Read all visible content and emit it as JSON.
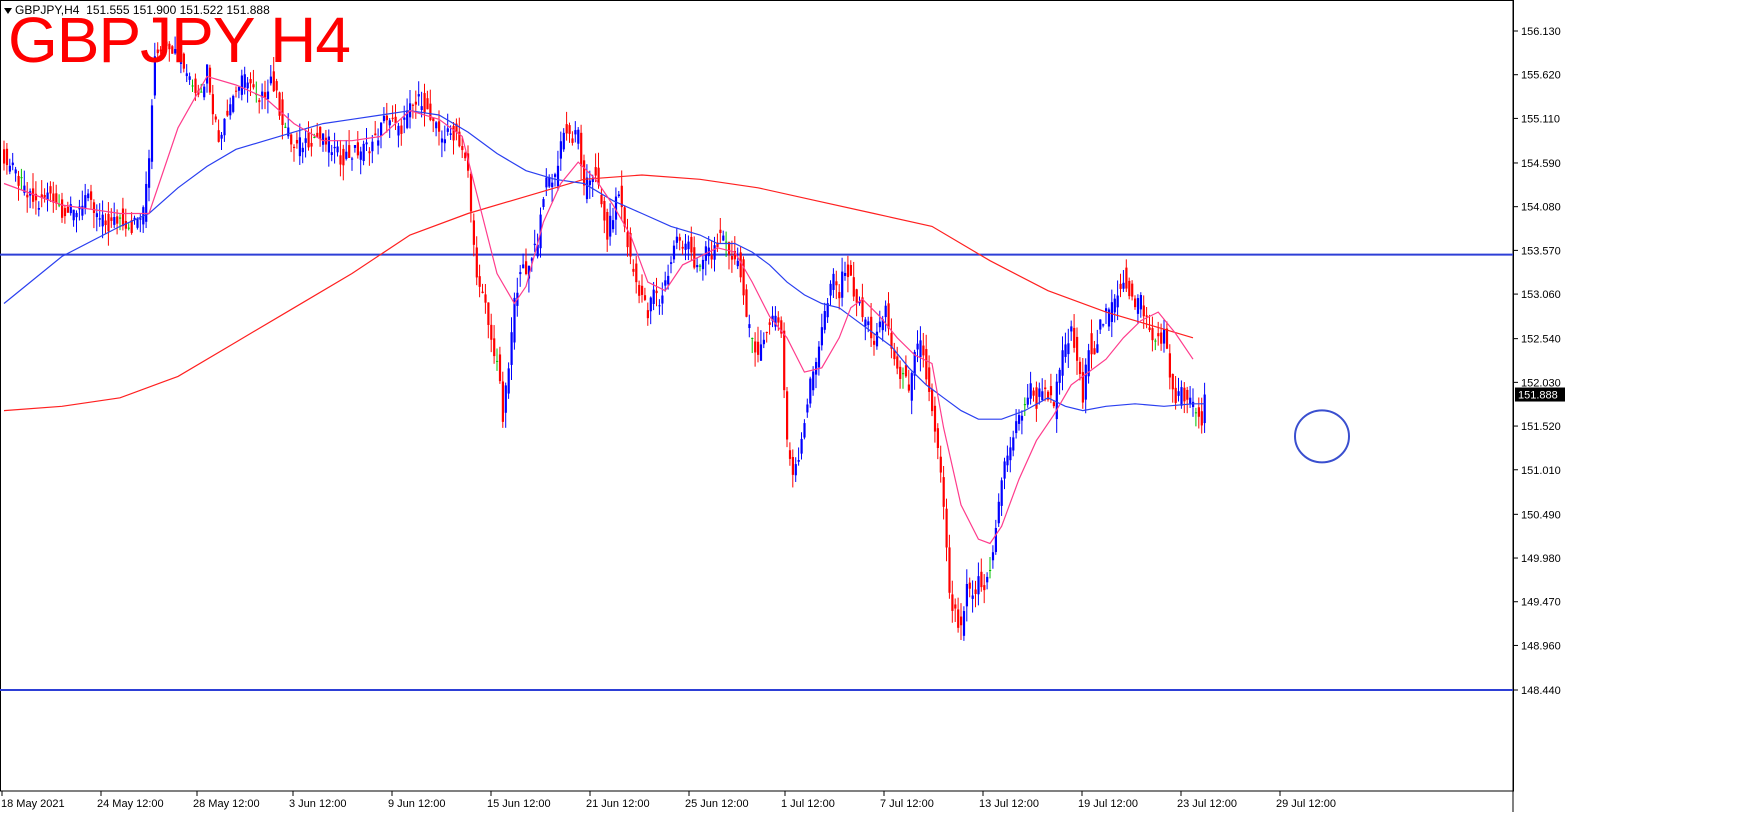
{
  "header": {
    "symbol": "GBPJPY,H4",
    "open": "151.555",
    "high": "151.900",
    "low": "151.522",
    "close": "151.888"
  },
  "overlay_title": "GBPJPY H4",
  "current_price_label": "151.888",
  "colors": {
    "bull_candle": "#0000ff",
    "bear_candle": "#ff0000",
    "doji_candle": "#00c000",
    "ma_fast": "#ff3c8c",
    "ma_mid": "#2a3ff0",
    "ma_slow": "#ff2020",
    "horizontal_lines": "#2d3fd6",
    "marker_circle": "#3a4fcf",
    "price_label_bg": "#000000"
  },
  "chart_data": {
    "type": "candlestick",
    "title": "GBPJPY H4",
    "ylim": [
      148.3,
      156.35
    ],
    "y_ticks": [
      "156.130",
      "155.620",
      "155.110",
      "154.590",
      "154.080",
      "153.570",
      "153.060",
      "152.540",
      "152.030",
      "151.520",
      "151.010",
      "150.490",
      "149.980",
      "149.470",
      "148.960",
      "148.440"
    ],
    "x_ticks": [
      "18 May 2021",
      "24 May 12:00",
      "28 May 12:00",
      "3 Jun 12:00",
      "9 Jun 12:00",
      "15 Jun 12:00",
      "21 Jun 12:00",
      "25 Jun 12:00",
      "1 Jul 12:00",
      "7 Jul 12:00",
      "13 Jul 12:00",
      "19 Jul 12:00",
      "23 Jul 12:00",
      "29 Jul 12:00"
    ],
    "horizontal_levels": [
      153.52,
      148.44
    ],
    "close_anchors": [
      [
        0,
        154.65
      ],
      [
        4,
        154.45
      ],
      [
        8,
        154.2
      ],
      [
        12,
        154.1
      ],
      [
        16,
        154.25
      ],
      [
        20,
        154.05
      ],
      [
        24,
        154.0
      ],
      [
        28,
        154.2
      ],
      [
        32,
        153.95
      ],
      [
        36,
        153.85
      ],
      [
        40,
        153.95
      ],
      [
        44,
        153.85
      ],
      [
        48,
        154.0
      ],
      [
        50,
        154.7
      ],
      [
        52,
        155.9
      ],
      [
        56,
        156.05
      ],
      [
        60,
        155.85
      ],
      [
        64,
        155.6
      ],
      [
        68,
        155.4
      ],
      [
        70,
        155.7
      ],
      [
        72,
        155.25
      ],
      [
        74,
        154.85
      ],
      [
        76,
        155.15
      ],
      [
        80,
        155.45
      ],
      [
        84,
        155.6
      ],
      [
        88,
        155.25
      ],
      [
        92,
        155.6
      ],
      [
        96,
        155.1
      ],
      [
        100,
        154.75
      ],
      [
        104,
        154.85
      ],
      [
        108,
        154.9
      ],
      [
        112,
        154.8
      ],
      [
        116,
        154.65
      ],
      [
        120,
        154.7
      ],
      [
        124,
        154.75
      ],
      [
        128,
        154.85
      ],
      [
        132,
        155.15
      ],
      [
        136,
        154.95
      ],
      [
        140,
        155.2
      ],
      [
        144,
        155.35
      ],
      [
        148,
        155.0
      ],
      [
        152,
        154.9
      ],
      [
        156,
        154.95
      ],
      [
        158,
        154.75
      ],
      [
        160,
        154.45
      ],
      [
        162,
        153.6
      ],
      [
        164,
        153.1
      ],
      [
        166,
        152.9
      ],
      [
        168,
        152.5
      ],
      [
        170,
        152.3
      ],
      [
        172,
        151.6
      ],
      [
        174,
        152.2
      ],
      [
        176,
        152.95
      ],
      [
        178,
        153.4
      ],
      [
        180,
        153.25
      ],
      [
        182,
        153.55
      ],
      [
        184,
        153.7
      ],
      [
        186,
        154.25
      ],
      [
        188,
        154.4
      ],
      [
        190,
        154.4
      ],
      [
        192,
        154.85
      ],
      [
        194,
        155.0
      ],
      [
        196,
        154.85
      ],
      [
        198,
        154.95
      ],
      [
        200,
        154.25
      ],
      [
        202,
        154.4
      ],
      [
        204,
        154.5
      ],
      [
        206,
        154.05
      ],
      [
        208,
        153.75
      ],
      [
        210,
        154.0
      ],
      [
        212,
        154.25
      ],
      [
        214,
        153.85
      ],
      [
        216,
        153.45
      ],
      [
        218,
        153.2
      ],
      [
        220,
        153.05
      ],
      [
        222,
        152.8
      ],
      [
        224,
        153.1
      ],
      [
        226,
        152.95
      ],
      [
        228,
        153.2
      ],
      [
        230,
        153.45
      ],
      [
        232,
        153.75
      ],
      [
        234,
        153.55
      ],
      [
        236,
        153.75
      ],
      [
        238,
        153.4
      ],
      [
        240,
        153.3
      ],
      [
        242,
        153.6
      ],
      [
        244,
        153.5
      ],
      [
        246,
        153.7
      ],
      [
        248,
        153.65
      ],
      [
        250,
        153.55
      ],
      [
        252,
        153.5
      ],
      [
        254,
        153.35
      ],
      [
        256,
        152.7
      ],
      [
        258,
        152.55
      ],
      [
        260,
        152.4
      ],
      [
        262,
        152.5
      ],
      [
        264,
        152.75
      ],
      [
        266,
        152.85
      ],
      [
        268,
        152.6
      ],
      [
        270,
        151.3
      ],
      [
        272,
        151.0
      ],
      [
        274,
        151.2
      ],
      [
        276,
        151.6
      ],
      [
        278,
        152.0
      ],
      [
        280,
        152.3
      ],
      [
        282,
        152.7
      ],
      [
        284,
        152.95
      ],
      [
        286,
        153.25
      ],
      [
        288,
        153.05
      ],
      [
        290,
        153.4
      ],
      [
        292,
        153.2
      ],
      [
        294,
        153.0
      ],
      [
        296,
        152.8
      ],
      [
        298,
        152.7
      ],
      [
        300,
        152.5
      ],
      [
        302,
        152.65
      ],
      [
        304,
        152.9
      ],
      [
        306,
        152.45
      ],
      [
        308,
        152.1
      ],
      [
        310,
        152.2
      ],
      [
        312,
        151.85
      ],
      [
        314,
        152.3
      ],
      [
        316,
        152.55
      ],
      [
        318,
        152.1
      ],
      [
        320,
        151.65
      ],
      [
        322,
        151.2
      ],
      [
        324,
        150.6
      ],
      [
        326,
        149.5
      ],
      [
        328,
        149.3
      ],
      [
        330,
        149.1
      ],
      [
        332,
        149.6
      ],
      [
        334,
        149.5
      ],
      [
        336,
        149.7
      ],
      [
        338,
        149.6
      ],
      [
        340,
        149.9
      ],
      [
        342,
        150.3
      ],
      [
        344,
        150.9
      ],
      [
        346,
        151.2
      ],
      [
        348,
        151.4
      ],
      [
        350,
        151.6
      ],
      [
        352,
        151.8
      ],
      [
        354,
        151.95
      ],
      [
        356,
        151.8
      ],
      [
        358,
        152.0
      ],
      [
        360,
        151.9
      ],
      [
        362,
        151.7
      ],
      [
        364,
        152.2
      ],
      [
        366,
        152.45
      ],
      [
        368,
        152.6
      ],
      [
        370,
        152.3
      ],
      [
        372,
        151.8
      ],
      [
        374,
        152.5
      ],
      [
        376,
        152.4
      ],
      [
        378,
        152.7
      ],
      [
        380,
        152.8
      ],
      [
        382,
        152.9
      ],
      [
        384,
        153.1
      ],
      [
        386,
        153.25
      ],
      [
        388,
        153.1
      ],
      [
        390,
        152.9
      ],
      [
        392,
        153.0
      ],
      [
        394,
        152.75
      ],
      [
        396,
        152.5
      ],
      [
        398,
        152.55
      ],
      [
        400,
        152.6
      ],
      [
        402,
        152.1
      ],
      [
        404,
        151.85
      ],
      [
        406,
        151.9
      ],
      [
        408,
        151.8
      ],
      [
        410,
        151.75
      ],
      [
        412,
        151.6
      ],
      [
        413,
        151.555
      ],
      [
        414,
        151.888
      ]
    ],
    "ma_fast_path": [
      [
        0,
        154.35
      ],
      [
        20,
        154.1
      ],
      [
        40,
        154.0
      ],
      [
        50,
        154.0
      ],
      [
        60,
        155.0
      ],
      [
        70,
        155.6
      ],
      [
        80,
        155.5
      ],
      [
        90,
        155.35
      ],
      [
        100,
        155.05
      ],
      [
        110,
        154.85
      ],
      [
        120,
        154.85
      ],
      [
        130,
        154.9
      ],
      [
        140,
        155.2
      ],
      [
        150,
        155.1
      ],
      [
        158,
        154.9
      ],
      [
        164,
        154.1
      ],
      [
        170,
        153.3
      ],
      [
        176,
        152.95
      ],
      [
        180,
        153.15
      ],
      [
        186,
        153.9
      ],
      [
        192,
        154.35
      ],
      [
        198,
        154.6
      ],
      [
        204,
        154.4
      ],
      [
        210,
        154.1
      ],
      [
        216,
        153.75
      ],
      [
        222,
        153.2
      ],
      [
        228,
        153.1
      ],
      [
        234,
        153.4
      ],
      [
        240,
        153.5
      ],
      [
        246,
        153.6
      ],
      [
        252,
        153.55
      ],
      [
        258,
        153.2
      ],
      [
        264,
        152.8
      ],
      [
        270,
        152.55
      ],
      [
        276,
        152.15
      ],
      [
        282,
        152.2
      ],
      [
        288,
        152.55
      ],
      [
        292,
        152.9
      ],
      [
        296,
        153.0
      ],
      [
        302,
        152.8
      ],
      [
        308,
        152.55
      ],
      [
        314,
        152.35
      ],
      [
        320,
        152.25
      ],
      [
        324,
        151.5
      ],
      [
        330,
        150.6
      ],
      [
        336,
        150.2
      ],
      [
        340,
        150.15
      ],
      [
        344,
        150.35
      ],
      [
        350,
        150.9
      ],
      [
        356,
        151.35
      ],
      [
        362,
        151.65
      ],
      [
        368,
        152.0
      ],
      [
        374,
        152.15
      ],
      [
        380,
        152.3
      ],
      [
        386,
        152.55
      ],
      [
        392,
        152.75
      ],
      [
        398,
        152.85
      ],
      [
        404,
        152.6
      ],
      [
        410,
        152.3
      ]
    ],
    "ma_mid_path": [
      [
        0,
        152.95
      ],
      [
        20,
        153.5
      ],
      [
        40,
        153.85
      ],
      [
        50,
        154.0
      ],
      [
        60,
        154.3
      ],
      [
        70,
        154.55
      ],
      [
        80,
        154.75
      ],
      [
        90,
        154.85
      ],
      [
        100,
        154.95
      ],
      [
        110,
        155.05
      ],
      [
        120,
        155.1
      ],
      [
        130,
        155.15
      ],
      [
        140,
        155.2
      ],
      [
        150,
        155.15
      ],
      [
        160,
        154.95
      ],
      [
        170,
        154.7
      ],
      [
        180,
        154.5
      ],
      [
        190,
        154.4
      ],
      [
        200,
        154.35
      ],
      [
        210,
        154.15
      ],
      [
        220,
        154.0
      ],
      [
        230,
        153.85
      ],
      [
        240,
        153.75
      ],
      [
        246,
        153.65
      ],
      [
        252,
        153.65
      ],
      [
        258,
        153.55
      ],
      [
        264,
        153.4
      ],
      [
        270,
        153.2
      ],
      [
        276,
        153.05
      ],
      [
        282,
        152.95
      ],
      [
        288,
        152.9
      ],
      [
        294,
        152.75
      ],
      [
        300,
        152.6
      ],
      [
        306,
        152.45
      ],
      [
        312,
        152.2
      ],
      [
        318,
        152.0
      ],
      [
        324,
        151.85
      ],
      [
        330,
        151.7
      ],
      [
        336,
        151.6
      ],
      [
        344,
        151.6
      ],
      [
        352,
        151.7
      ],
      [
        360,
        151.85
      ],
      [
        366,
        151.75
      ],
      [
        372,
        151.7
      ],
      [
        380,
        151.75
      ],
      [
        390,
        151.78
      ],
      [
        400,
        151.75
      ],
      [
        410,
        151.78
      ],
      [
        414,
        151.78
      ]
    ],
    "ma_slow_path": [
      [
        0,
        151.7
      ],
      [
        20,
        151.75
      ],
      [
        40,
        151.85
      ],
      [
        60,
        152.1
      ],
      [
        80,
        152.5
      ],
      [
        100,
        152.9
      ],
      [
        120,
        153.3
      ],
      [
        140,
        153.75
      ],
      [
        160,
        154.0
      ],
      [
        180,
        154.2
      ],
      [
        200,
        154.4
      ],
      [
        220,
        154.45
      ],
      [
        240,
        154.4
      ],
      [
        260,
        154.3
      ],
      [
        280,
        154.15
      ],
      [
        300,
        154.0
      ],
      [
        320,
        153.85
      ],
      [
        340,
        153.45
      ],
      [
        360,
        153.1
      ],
      [
        380,
        152.85
      ],
      [
        400,
        152.65
      ],
      [
        410,
        152.55
      ]
    ],
    "marker_circle_center": [
      413,
      151.4
    ]
  }
}
